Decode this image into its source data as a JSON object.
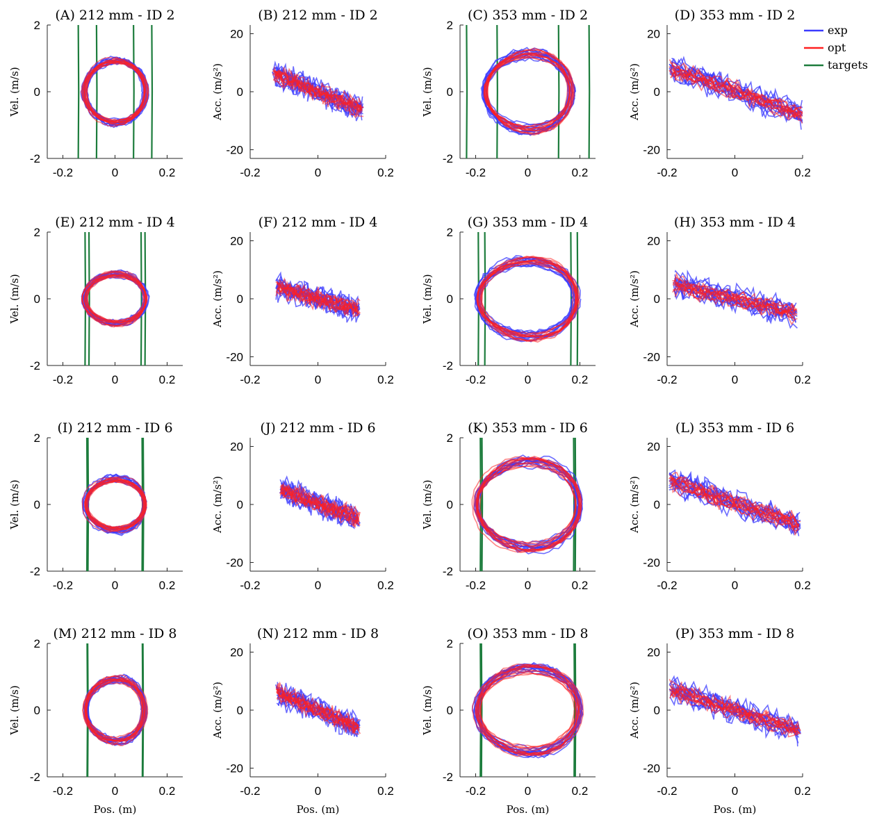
{
  "figure": {
    "legend": [
      {
        "name": "exp",
        "color": "#3b3bff"
      },
      {
        "name": "opt",
        "color": "#ff2020"
      },
      {
        "name": "targets",
        "color": "#1c7c3c"
      }
    ],
    "xlabel": "Pos. (m)",
    "vel_ylabel": "Vel. (m/s)",
    "acc_ylabel": "Acc. (m/s²)",
    "vel_xlim": [
      -0.26,
      0.26
    ],
    "vel_ylim": [
      -2,
      2
    ],
    "vel_xticks": [
      "-0.2",
      "0",
      "0.2"
    ],
    "vel_yticks": [
      "2",
      "0",
      "-2"
    ],
    "acc_xlim": [
      -0.2,
      0.2
    ],
    "acc_ylim": [
      -23,
      23
    ],
    "acc_xticks": [
      "-0.2",
      "0",
      "0.2"
    ],
    "acc_yticks": [
      "20",
      "0",
      "-20"
    ]
  },
  "chart_data": [
    {
      "type": "line",
      "plot": "velocity",
      "title": "(A) 212 mm - ID 2",
      "x_amplitude": 0.12,
      "y_amplitude": 0.95,
      "targets_x": [
        -0.141,
        -0.071,
        0.071,
        0.141
      ]
    },
    {
      "type": "line",
      "plot": "acceleration",
      "title": "(B) 212 mm - ID 2",
      "x_range": [
        -0.13,
        0.13
      ],
      "y_at_xmin": 6,
      "y_at_xmax": -6
    },
    {
      "type": "line",
      "plot": "velocity",
      "title": "(C) 353 mm - ID 2",
      "x_amplitude": 0.17,
      "y_amplitude": 1.15,
      "targets_x": [
        -0.235,
        -0.118,
        0.118,
        0.235
      ]
    },
    {
      "type": "line",
      "plot": "acceleration",
      "title": "(D) 353 mm - ID 2",
      "x_range": [
        -0.19,
        0.2
      ],
      "y_at_xmin": 8,
      "y_at_xmax": -8
    },
    {
      "type": "line",
      "plot": "velocity",
      "title": "(E) 212 mm - ID 4",
      "x_amplitude": 0.12,
      "y_amplitude": 0.75,
      "targets_x": [
        -0.115,
        -0.1,
        0.1,
        0.115
      ]
    },
    {
      "type": "line",
      "plot": "acceleration",
      "title": "(F) 212 mm - ID 4",
      "x_range": [
        -0.12,
        0.12
      ],
      "y_at_xmin": 4,
      "y_at_xmax": -4
    },
    {
      "type": "line",
      "plot": "velocity",
      "title": "(G) 353 mm - ID 4",
      "x_amplitude": 0.19,
      "y_amplitude": 1.15,
      "targets_x": [
        -0.19,
        -0.165,
        0.165,
        0.19
      ]
    },
    {
      "type": "line",
      "plot": "acceleration",
      "title": "(H) 353 mm - ID 4",
      "x_range": [
        -0.18,
        0.18
      ],
      "y_at_xmin": 5,
      "y_at_xmax": -5
    },
    {
      "type": "line",
      "plot": "velocity",
      "title": "(I) 212 mm - ID 6",
      "x_amplitude": 0.115,
      "y_amplitude": 0.8,
      "targets_x": [
        -0.108,
        -0.104,
        0.104,
        0.108
      ]
    },
    {
      "type": "line",
      "plot": "acceleration",
      "title": "(J) 212 mm - ID 6",
      "x_range": [
        -0.11,
        0.12
      ],
      "y_at_xmin": 5,
      "y_at_xmax": -5
    },
    {
      "type": "line",
      "plot": "velocity",
      "title": "(K) 353 mm - ID 6",
      "x_amplitude": 0.2,
      "y_amplitude": 1.3,
      "targets_x": [
        -0.182,
        -0.176,
        0.176,
        0.182
      ]
    },
    {
      "type": "line",
      "plot": "acceleration",
      "title": "(L) 353 mm - ID 6",
      "x_range": [
        -0.19,
        0.19
      ],
      "y_at_xmin": 8,
      "y_at_xmax": -7
    },
    {
      "type": "line",
      "plot": "velocity",
      "title": "(M) 212 mm - ID 8",
      "x_amplitude": 0.115,
      "y_amplitude": 0.95,
      "targets_x": [
        -0.107,
        -0.105,
        0.105,
        0.107
      ]
    },
    {
      "type": "line",
      "plot": "acceleration",
      "title": "(N) 212 mm - ID 8",
      "x_range": [
        -0.12,
        0.12
      ],
      "y_at_xmin": 6,
      "y_at_xmax": -6
    },
    {
      "type": "line",
      "plot": "velocity",
      "title": "(O) 353 mm - ID 8",
      "x_amplitude": 0.2,
      "y_amplitude": 1.25,
      "targets_x": [
        -0.182,
        -0.178,
        0.178,
        0.182
      ]
    },
    {
      "type": "line",
      "plot": "acceleration",
      "title": "(P) 353 mm - ID 8",
      "x_range": [
        -0.19,
        0.19
      ],
      "y_at_xmin": 7,
      "y_at_xmax": -7
    }
  ]
}
